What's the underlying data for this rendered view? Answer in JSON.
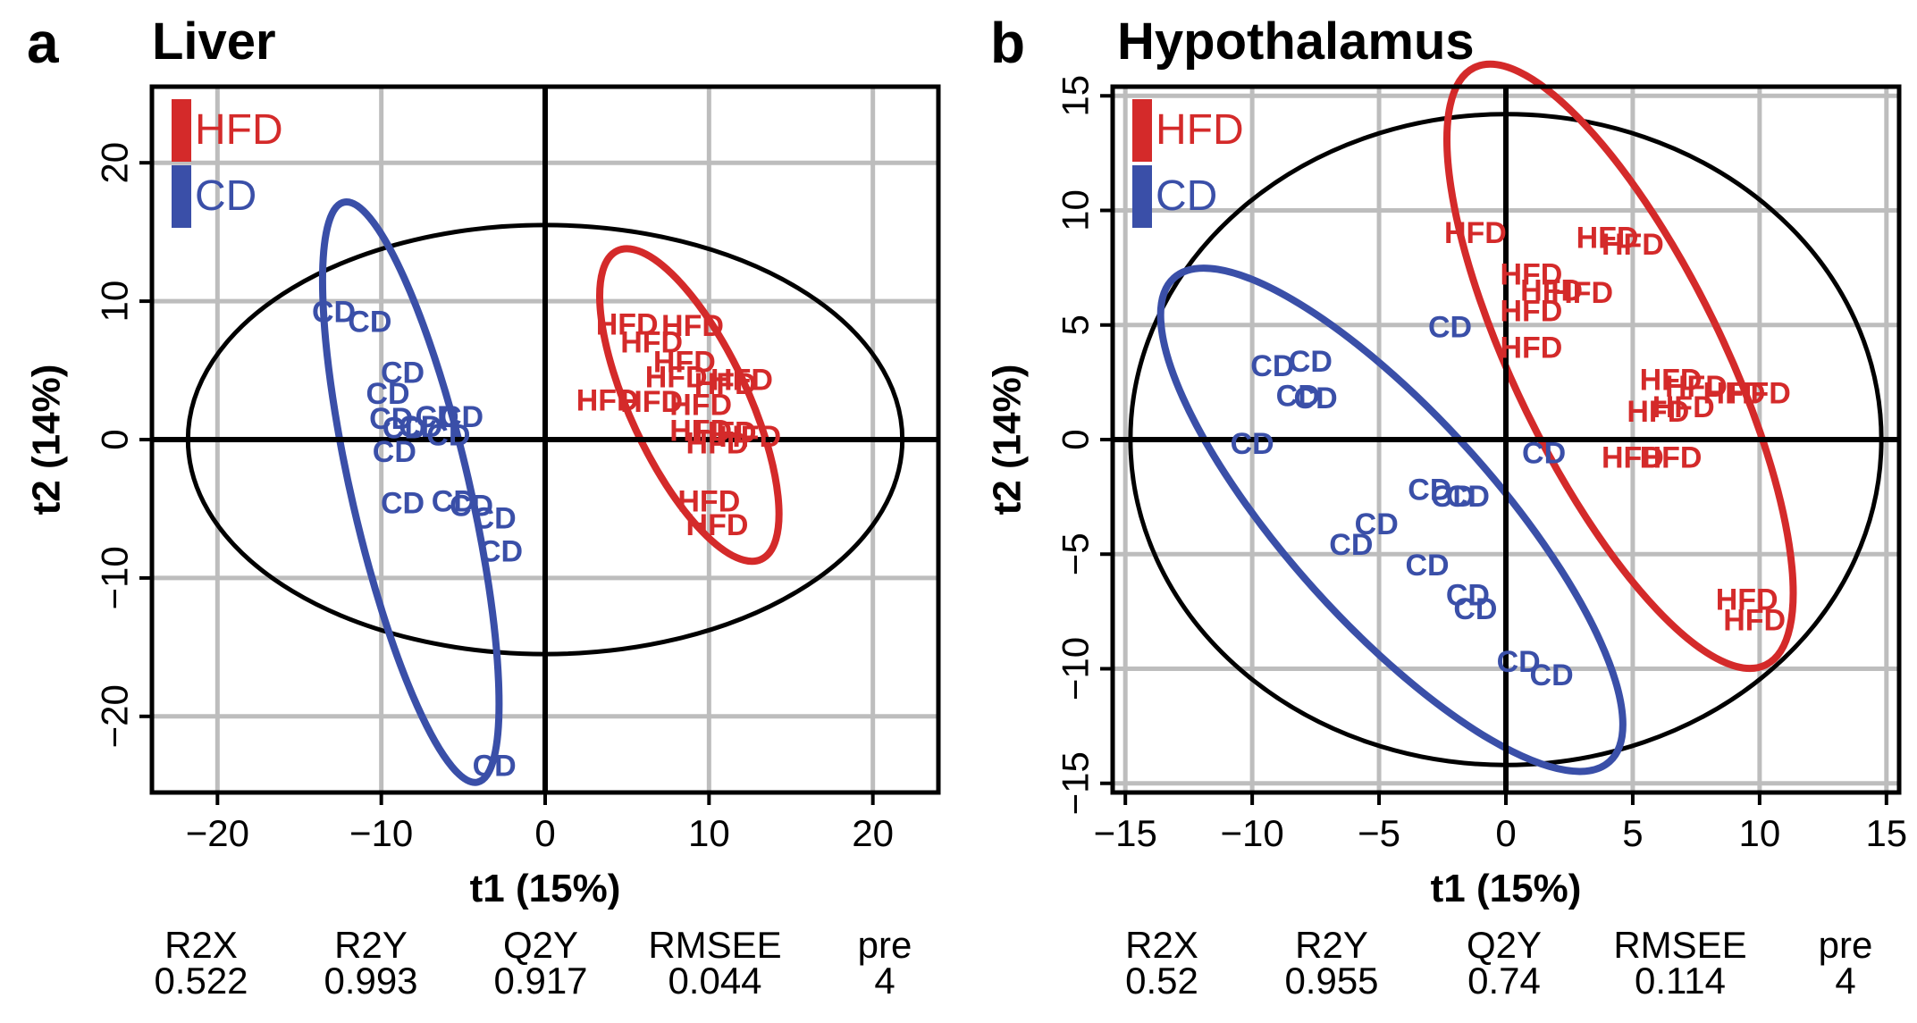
{
  "colors": {
    "hfd": "#d42a2a",
    "cd": "#3a4fa8",
    "grid": "#bdbdbd",
    "axis": "#000000"
  },
  "chart_data": [
    {
      "type": "scatter",
      "letter": "a",
      "title": "Liver",
      "xlabel": "t1 (15%)",
      "ylabel": "t2 (14%)",
      "xlim": [
        -24,
        24
      ],
      "ylim": [
        -25.5,
        25.5
      ],
      "xticks": [
        -20,
        -10,
        0,
        10,
        20
      ],
      "xtick_labels": [
        "−20",
        "−10",
        "0",
        "10",
        "20"
      ],
      "yticks": [
        -20,
        -10,
        0,
        10,
        20
      ],
      "ytick_labels": [
        "−20",
        "−10",
        "0",
        "10",
        "20"
      ],
      "grid": true,
      "legend": [
        "HFD",
        "CD"
      ],
      "legend_position": "top-left",
      "hotelling_ellipse": {
        "cx": 0,
        "cy": 0,
        "rx": 21.8,
        "ry": 15.5,
        "angle": 0
      },
      "group_ellipses": [
        {
          "group": "CD",
          "cx": -8.2,
          "cy": -3.8,
          "rx": 3.6,
          "ry": 21.5,
          "angle": -13
        },
        {
          "group": "HFD",
          "cx": 8.8,
          "cy": 2.5,
          "rx": 3.6,
          "ry": 12.3,
          "angle": -25
        }
      ],
      "series": [
        {
          "name": "HFD",
          "points": [
            [
              5,
              8.3
            ],
            [
              9,
              8.2
            ],
            [
              6.5,
              7
            ],
            [
              8.5,
              5.6
            ],
            [
              8,
              4.5
            ],
            [
              11,
              4
            ],
            [
              12,
              4.3
            ],
            [
              3.8,
              2.8
            ],
            [
              6.5,
              2.7
            ],
            [
              9.5,
              2.5
            ],
            [
              9.5,
              0.6
            ],
            [
              11,
              0.5
            ],
            [
              12.5,
              0.2
            ],
            [
              10.5,
              -0.3
            ],
            [
              10,
              -4.5
            ],
            [
              10.5,
              -6.2
            ]
          ]
        },
        {
          "name": "CD",
          "points": [
            [
              -12.9,
              9.2
            ],
            [
              -10.7,
              8.5
            ],
            [
              -8.7,
              4.8
            ],
            [
              -9.6,
              3.3
            ],
            [
              -9.4,
              1.5
            ],
            [
              -6.6,
              1.6
            ],
            [
              -5.1,
              1.6
            ],
            [
              -8.6,
              0.8
            ],
            [
              -7.6,
              0.9
            ],
            [
              -5.9,
              0.3
            ],
            [
              -9.2,
              -0.9
            ],
            [
              -8.7,
              -4.6
            ],
            [
              -5.6,
              -4.5
            ],
            [
              -4.5,
              -4.8
            ],
            [
              -3.1,
              -5.7
            ],
            [
              -2.7,
              -8.1
            ],
            [
              -3.1,
              -23.6
            ]
          ]
        }
      ],
      "stats": {
        "headers": [
          "R2X",
          "R2Y",
          "Q2Y",
          "RMSEE",
          "pre"
        ],
        "values": [
          "0.522",
          "0.993",
          "0.917",
          "0.044",
          "4"
        ]
      }
    },
    {
      "type": "scatter",
      "letter": "b",
      "title": "Hypothalamus",
      "xlabel": "t1 (15%)",
      "ylabel": "t2 (14%)",
      "xlim": [
        -15.5,
        15.5
      ],
      "ylim": [
        -15.4,
        15.4
      ],
      "xticks": [
        -15,
        -10,
        -5,
        0,
        5,
        10,
        15
      ],
      "xtick_labels": [
        "−15",
        "−10",
        "−5",
        "0",
        "5",
        "10",
        "15"
      ],
      "yticks": [
        -15,
        -10,
        -5,
        0,
        5,
        10,
        15
      ],
      "ytick_labels": [
        "−15",
        "−10",
        "−5",
        "0",
        "5",
        "10",
        "15"
      ],
      "grid": true,
      "legend": [
        "HFD",
        "CD"
      ],
      "legend_position": "top-left",
      "hotelling_ellipse": {
        "cx": 0,
        "cy": 0,
        "rx": 14.8,
        "ry": 14.2,
        "angle": 0
      },
      "group_ellipses": [
        {
          "group": "CD",
          "cx": -4.5,
          "cy": -3.5,
          "rx": 4.1,
          "ry": 14.2,
          "angle": -42
        },
        {
          "group": "HFD",
          "cx": 4.5,
          "cy": 3.2,
          "rx": 4.1,
          "ry": 14.5,
          "angle": -26
        }
      ],
      "series": [
        {
          "name": "HFD",
          "points": [
            [
              -1.2,
              9
            ],
            [
              4,
              8.8
            ],
            [
              5,
              8.5
            ],
            [
              1,
              7.2
            ],
            [
              1.8,
              6.5
            ],
            [
              3,
              6.4
            ],
            [
              1,
              5.6
            ],
            [
              1,
              4
            ],
            [
              6.5,
              2.6
            ],
            [
              7.5,
              2.3
            ],
            [
              9,
              2
            ],
            [
              10,
              2
            ],
            [
              6,
              1.2
            ],
            [
              7,
              1.4
            ],
            [
              5,
              -0.8
            ],
            [
              6.5,
              -0.8
            ],
            [
              9.5,
              -7
            ],
            [
              9.8,
              -7.9
            ]
          ]
        },
        {
          "name": "CD",
          "points": [
            [
              -2.2,
              4.9
            ],
            [
              -9.2,
              3.2
            ],
            [
              -7.7,
              3.4
            ],
            [
              -8.2,
              1.9
            ],
            [
              -7.5,
              1.8
            ],
            [
              -10,
              -0.2
            ],
            [
              1.5,
              -0.6
            ],
            [
              -3,
              -2.2
            ],
            [
              -2.1,
              -2.5
            ],
            [
              -1.5,
              -2.5
            ],
            [
              -5.1,
              -3.7
            ],
            [
              -6.1,
              -4.6
            ],
            [
              -3.1,
              -5.5
            ],
            [
              -1.5,
              -6.8
            ],
            [
              -1.2,
              -7.4
            ],
            [
              0.5,
              -9.7
            ],
            [
              1.8,
              -10.3
            ]
          ]
        }
      ],
      "stats": {
        "headers": [
          "R2X",
          "R2Y",
          "Q2Y",
          "RMSEE",
          "pre"
        ],
        "values": [
          "0.52",
          "0.955",
          "0.74",
          "0.114",
          "4"
        ]
      }
    }
  ]
}
